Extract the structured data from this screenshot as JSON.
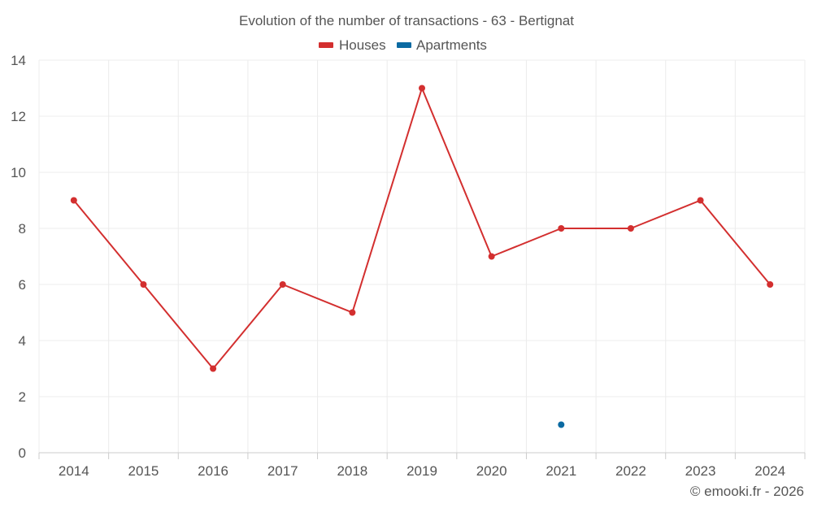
{
  "chart_data": {
    "type": "line",
    "title": "Evolution of the number of transactions - 63 - Bertignat",
    "categories": [
      "2014",
      "2015",
      "2016",
      "2017",
      "2018",
      "2019",
      "2020",
      "2021",
      "2022",
      "2023",
      "2024"
    ],
    "yticks": [
      "0",
      "2",
      "4",
      "6",
      "8",
      "10",
      "12",
      "14"
    ],
    "ylim": [
      0,
      14
    ],
    "grid": true,
    "legend_position": "top-center",
    "series": [
      {
        "name": "Houses",
        "color": "#d32f2f",
        "values": [
          9,
          6,
          3,
          6,
          5,
          13,
          7,
          8,
          8,
          9,
          6
        ]
      },
      {
        "name": "Apartments",
        "color": "#0b6aa2",
        "values": [
          null,
          null,
          null,
          null,
          null,
          null,
          null,
          1,
          null,
          null,
          null
        ]
      }
    ],
    "credit": "© emooki.fr - 2026"
  }
}
